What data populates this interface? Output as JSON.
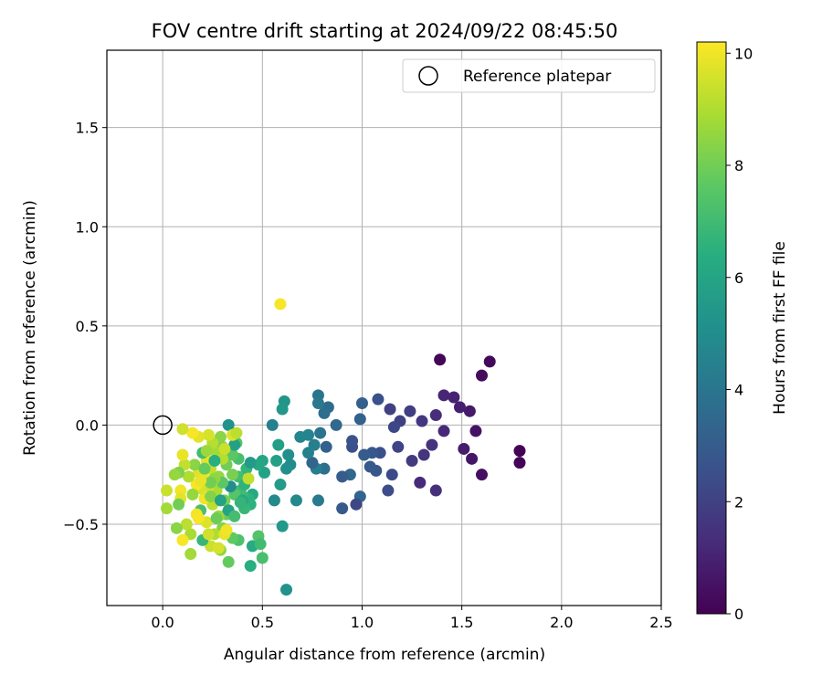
{
  "chart_data": {
    "type": "scatter",
    "title": "FOV centre drift starting at 2024/09/22 08:45:50",
    "xlabel": "Angular distance from reference (arcmin)",
    "ylabel": "Rotation from reference (arcmin)",
    "xlim": [
      -0.28,
      2.5
    ],
    "ylim": [
      -0.91,
      1.89
    ],
    "xticks": [
      0.0,
      0.5,
      1.0,
      1.5,
      2.0,
      2.5
    ],
    "xtick_labels": [
      "0.0",
      "0.5",
      "1.0",
      "1.5",
      "2.0",
      "2.5"
    ],
    "yticks": [
      -0.5,
      0.0,
      0.5,
      1.0,
      1.5
    ],
    "ytick_labels": [
      "−0.5",
      "0.0",
      "0.5",
      "1.0",
      "1.5"
    ],
    "grid": true,
    "legend": {
      "position": "upper-right",
      "entries": [
        "Reference platepar"
      ]
    },
    "reference": {
      "x": 0.0,
      "y": 0.0,
      "label": "Reference platepar"
    },
    "colorbar": {
      "label": "Hours from first FF file",
      "colormap": "viridis",
      "range": [
        0,
        10.2
      ],
      "ticks": [
        0,
        2,
        4,
        6,
        8,
        10
      ],
      "tick_labels": [
        "0",
        "2",
        "4",
        "6",
        "8",
        "10"
      ]
    },
    "points": [
      [
        1.79,
        -0.13,
        0.05
      ],
      [
        1.79,
        -0.19,
        0.1
      ],
      [
        1.64,
        0.32,
        0.2
      ],
      [
        1.6,
        0.25,
        0.3
      ],
      [
        1.6,
        -0.25,
        0.4
      ],
      [
        1.57,
        -0.03,
        0.5
      ],
      [
        1.55,
        -0.17,
        0.6
      ],
      [
        1.54,
        0.07,
        0.7
      ],
      [
        1.51,
        -0.12,
        0.8
      ],
      [
        1.49,
        0.09,
        0.9
      ],
      [
        1.46,
        0.14,
        1.0
      ],
      [
        1.41,
        0.15,
        1.1
      ],
      [
        1.41,
        -0.03,
        1.2
      ],
      [
        1.39,
        0.33,
        0.15
      ],
      [
        1.37,
        0.05,
        1.3
      ],
      [
        1.37,
        -0.33,
        1.4
      ],
      [
        1.35,
        -0.1,
        1.5
      ],
      [
        1.31,
        -0.15,
        1.6
      ],
      [
        1.3,
        0.02,
        1.7
      ],
      [
        1.29,
        -0.29,
        1.25
      ],
      [
        1.25,
        -0.18,
        1.8
      ],
      [
        1.24,
        0.07,
        1.9
      ],
      [
        1.19,
        0.02,
        2.0
      ],
      [
        1.18,
        -0.11,
        2.1
      ],
      [
        1.16,
        -0.01,
        2.2
      ],
      [
        1.15,
        -0.25,
        2.3
      ],
      [
        1.14,
        0.08,
        1.95
      ],
      [
        1.13,
        -0.33,
        2.4
      ],
      [
        1.09,
        -0.14,
        2.5
      ],
      [
        1.08,
        0.13,
        2.6
      ],
      [
        1.07,
        -0.23,
        2.7
      ],
      [
        1.05,
        -0.14,
        2.8
      ],
      [
        1.04,
        -0.21,
        2.9
      ],
      [
        1.01,
        -0.15,
        3.0
      ],
      [
        1.0,
        0.11,
        3.1
      ],
      [
        0.99,
        0.03,
        3.2
      ],
      [
        0.99,
        -0.36,
        3.3
      ],
      [
        0.97,
        -0.4,
        2.2
      ],
      [
        0.95,
        -0.11,
        2.5
      ],
      [
        0.95,
        -0.08,
        2.6
      ],
      [
        0.94,
        -0.25,
        3.4
      ],
      [
        0.9,
        -0.42,
        2.9
      ],
      [
        0.9,
        -0.26,
        3.0
      ],
      [
        0.87,
        0.0,
        3.5
      ],
      [
        0.83,
        0.09,
        3.6
      ],
      [
        0.82,
        -0.11,
        3.2
      ],
      [
        0.81,
        0.06,
        3.7
      ],
      [
        0.81,
        -0.22,
        3.8
      ],
      [
        0.79,
        -0.04,
        3.9
      ],
      [
        0.78,
        0.15,
        4.0
      ],
      [
        0.78,
        0.11,
        4.1
      ],
      [
        0.78,
        -0.38,
        4.2
      ],
      [
        0.77,
        -0.22,
        4.3
      ],
      [
        0.76,
        -0.1,
        4.4
      ],
      [
        0.75,
        -0.19,
        3.3
      ],
      [
        0.73,
        -0.14,
        4.5
      ],
      [
        0.73,
        -0.05,
        4.6
      ],
      [
        0.69,
        -0.06,
        4.7
      ],
      [
        0.67,
        -0.38,
        4.8
      ],
      [
        0.64,
        -0.2,
        4.9
      ],
      [
        0.63,
        -0.15,
        5.0
      ],
      [
        0.62,
        -0.22,
        5.1
      ],
      [
        0.62,
        -0.83,
        5.2
      ],
      [
        0.61,
        0.12,
        5.3
      ],
      [
        0.6,
        0.08,
        5.4
      ],
      [
        0.6,
        -0.51,
        5.5
      ],
      [
        0.59,
        -0.3,
        5.6
      ],
      [
        0.58,
        -0.1,
        5.7
      ],
      [
        0.57,
        -0.18,
        5.8
      ],
      [
        0.56,
        -0.38,
        4.8
      ],
      [
        0.55,
        0.0,
        4.5
      ],
      [
        0.59,
        0.61,
        10.1
      ],
      [
        0.51,
        -0.24,
        5.9
      ],
      [
        0.5,
        -0.18,
        6.0
      ],
      [
        0.48,
        -0.2,
        6.1
      ],
      [
        0.45,
        -0.35,
        6.2
      ],
      [
        0.45,
        -0.61,
        6.3
      ],
      [
        0.44,
        -0.71,
        6.4
      ],
      [
        0.44,
        -0.4,
        6.5
      ],
      [
        0.43,
        -0.37,
        6.6
      ],
      [
        0.42,
        -0.22,
        6.7
      ],
      [
        0.41,
        -0.42,
        6.8
      ],
      [
        0.4,
        -0.36,
        6.9
      ],
      [
        0.39,
        -0.33,
        7.0
      ],
      [
        0.38,
        -0.26,
        7.1
      ],
      [
        0.38,
        -0.17,
        7.2
      ],
      [
        0.38,
        -0.58,
        7.3
      ],
      [
        0.37,
        -0.09,
        7.4
      ],
      [
        0.36,
        -0.35,
        7.5
      ],
      [
        0.35,
        -0.15,
        7.6
      ],
      [
        0.35,
        -0.57,
        7.7
      ],
      [
        0.34,
        -0.31,
        5.0
      ],
      [
        0.33,
        0.0,
        5.2
      ],
      [
        0.33,
        -0.69,
        7.8
      ],
      [
        0.32,
        -0.45,
        7.9
      ],
      [
        0.32,
        -0.2,
        8.0
      ],
      [
        0.31,
        -0.38,
        8.1
      ],
      [
        0.3,
        -0.11,
        8.2
      ],
      [
        0.3,
        -0.52,
        8.3
      ],
      [
        0.29,
        -0.06,
        8.4
      ],
      [
        0.29,
        -0.63,
        8.5
      ],
      [
        0.28,
        -0.26,
        8.6
      ],
      [
        0.28,
        -0.46,
        8.7
      ],
      [
        0.27,
        -0.14,
        8.8
      ],
      [
        0.27,
        -0.33,
        8.9
      ],
      [
        0.26,
        -0.55,
        9.0
      ],
      [
        0.25,
        -0.09,
        9.1
      ],
      [
        0.25,
        -0.4,
        9.2
      ],
      [
        0.24,
        -0.22,
        9.3
      ],
      [
        0.24,
        -0.61,
        9.4
      ],
      [
        0.23,
        -0.31,
        9.5
      ],
      [
        0.23,
        -0.05,
        9.6
      ],
      [
        0.22,
        -0.49,
        9.7
      ],
      [
        0.22,
        -0.18,
        9.8
      ],
      [
        0.21,
        -0.27,
        9.9
      ],
      [
        0.21,
        -0.37,
        10.0
      ],
      [
        0.2,
        -0.58,
        6.8
      ],
      [
        0.2,
        -0.14,
        7.0
      ],
      [
        0.19,
        -0.43,
        7.2
      ],
      [
        0.19,
        -0.32,
        9.6
      ],
      [
        0.18,
        -0.24,
        9.7
      ],
      [
        0.18,
        -0.06,
        9.8
      ],
      [
        0.17,
        -0.45,
        10.0
      ],
      [
        0.17,
        -0.3,
        10.1
      ],
      [
        0.16,
        -0.2,
        8.4
      ],
      [
        0.15,
        -0.35,
        8.6
      ],
      [
        0.15,
        -0.04,
        10.1
      ],
      [
        0.14,
        -0.65,
        8.8
      ],
      [
        0.14,
        -0.55,
        8.9
      ],
      [
        0.13,
        -0.26,
        9.0
      ],
      [
        0.12,
        -0.5,
        9.2
      ],
      [
        0.11,
        -0.2,
        9.3
      ],
      [
        0.1,
        -0.02,
        9.5
      ],
      [
        0.1,
        -0.58,
        10.1
      ],
      [
        0.1,
        -0.15,
        9.9
      ],
      [
        0.09,
        -0.33,
        10.0
      ],
      [
        0.09,
        -0.37,
        9.8
      ],
      [
        0.08,
        -0.4,
        8.0
      ],
      [
        0.08,
        -0.24,
        8.2
      ],
      [
        0.07,
        -0.52,
        8.4
      ],
      [
        0.06,
        -0.25,
        8.6
      ],
      [
        0.02,
        -0.42,
        8.8
      ],
      [
        0.02,
        -0.33,
        9.4
      ],
      [
        0.3,
        -0.29,
        7.6
      ],
      [
        0.26,
        -0.27,
        8.5
      ],
      [
        0.35,
        -0.25,
        8.1
      ],
      [
        0.4,
        -0.38,
        6.2
      ],
      [
        0.41,
        -0.3,
        6.6
      ],
      [
        0.43,
        -0.27,
        9.3
      ],
      [
        0.44,
        -0.19,
        5.6
      ],
      [
        0.48,
        -0.56,
        7.4
      ],
      [
        0.49,
        -0.6,
        7.0
      ],
      [
        0.5,
        -0.67,
        7.2
      ],
      [
        0.36,
        -0.1,
        5.8
      ],
      [
        0.31,
        -0.55,
        9.9
      ],
      [
        0.28,
        -0.62,
        9.6
      ],
      [
        0.27,
        -0.47,
        7.9
      ],
      [
        0.24,
        -0.36,
        8.3
      ],
      [
        0.22,
        -0.13,
        8.7
      ],
      [
        0.35,
        -0.05,
        9.7
      ],
      [
        0.32,
        -0.53,
        10.0
      ],
      [
        0.3,
        -0.17,
        9.1
      ],
      [
        0.26,
        -0.18,
        6.4
      ],
      [
        0.29,
        -0.38,
        5.9
      ],
      [
        0.37,
        -0.04,
        9.2
      ],
      [
        0.31,
        -0.12,
        9.4
      ],
      [
        0.24,
        -0.29,
        8.0
      ],
      [
        0.21,
        -0.22,
        7.8
      ],
      [
        0.33,
        -0.43,
        6.0
      ],
      [
        0.39,
        -0.39,
        6.7
      ],
      [
        0.36,
        -0.46,
        7.1
      ],
      [
        0.23,
        -0.55,
        9.5
      ],
      [
        0.19,
        -0.28,
        9.9
      ],
      [
        0.18,
        -0.47,
        10.1
      ]
    ]
  }
}
